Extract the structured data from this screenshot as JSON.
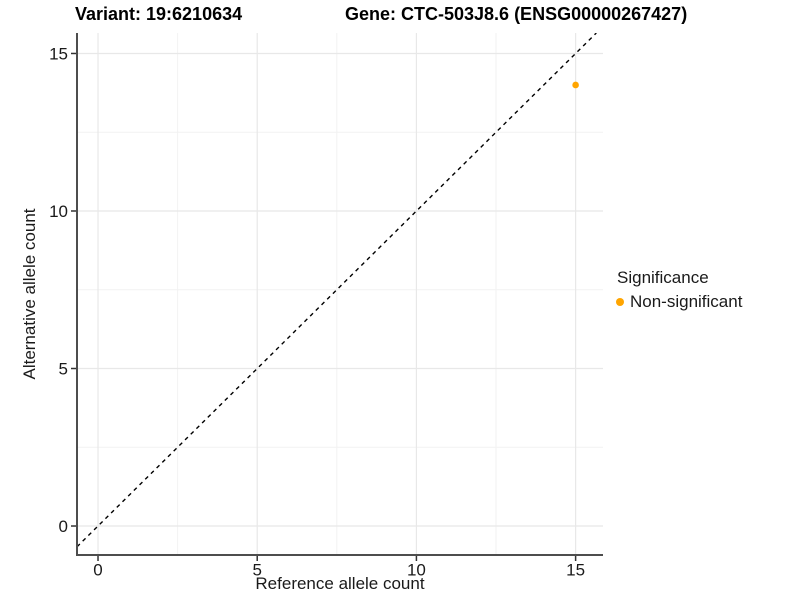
{
  "legend": {
    "title": "Significance",
    "items": [
      {
        "label": "Non-significant",
        "color": "#FFA500"
      }
    ]
  },
  "colors": {
    "background": "#FFFFFF",
    "point": "#FFA500",
    "axis_line": "#4d4d4d",
    "tick_mark": "#333333",
    "tick_label": "#1a1a1a",
    "grid_major": "#E8E8E8",
    "grid_minor": "#F2F2F2",
    "reference_line": "#000000"
  },
  "chart_data": {
    "type": "scatter",
    "titles": [
      "Variant: 19:6210634",
      "Gene: CTC-503J8.6 (ENSG00000267427)"
    ],
    "xlabel": "Reference allele count",
    "ylabel": "Alternative allele count",
    "x_ticks": [
      0,
      5,
      10,
      15
    ],
    "y_ticks": [
      0,
      5,
      10,
      15
    ],
    "x_minor_ticks": [
      2.5,
      7.5,
      12.5
    ],
    "y_minor_ticks": [
      2.5,
      7.5,
      12.5
    ],
    "xlim": [
      -0.66,
      15.86
    ],
    "ylim": [
      -0.92,
      15.65
    ],
    "grid": "major+minor",
    "legend_position": "right",
    "reference_line": {
      "kind": "identity",
      "style": "dashed",
      "color": "#000000"
    },
    "series": [
      {
        "name": "Non-significant",
        "color": "#FFA500",
        "points": [
          {
            "x": 15,
            "y": 14
          }
        ]
      }
    ]
  }
}
